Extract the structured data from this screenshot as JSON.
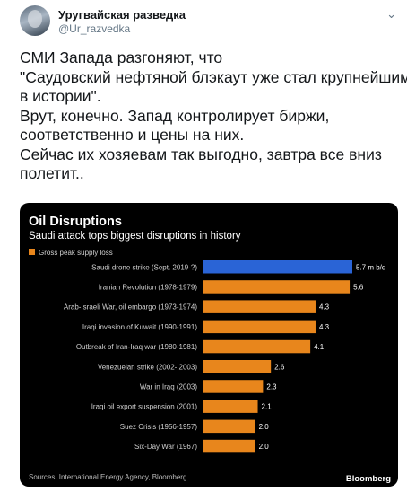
{
  "account": {
    "name": "Уругвайская разведка",
    "handle": "@Ur_razvedka",
    "avatar_icon": "profile-avatar",
    "menu_icon": "chevron-down-icon"
  },
  "tweet": {
    "lines": [
      "СМИ Запада разгоняют, что",
      "\"Саудовский нефтяной блэкаут уже стал крупнейшим",
      "в истории\".",
      "Врут, конечно. Запад контролирует биржи,",
      "соответственно и цены на них.",
      "Сейчас их хозяевам так выгодно, завтра все вниз",
      "полетит.."
    ]
  },
  "chart_data": {
    "type": "bar",
    "orientation": "horizontal",
    "title": "Oil Disruptions",
    "subtitle": "Saudi attack tops biggest disruptions in history",
    "legend": "Gross peak supply loss",
    "categories": [
      "Saudi drone strike (Sept. 2019-?)",
      "Iranian Revolution (1978-1979)",
      "Arab-Israeli War, oil embargo (1973-1974)",
      "Iraqi invasion of Kuwait (1990-1991)",
      "Outbreak of Iran-Iraq war (1980-1981)",
      "Venezuelan strike (2002- 2003)",
      "War in Iraq (2003)",
      "Iraqi oil export suspension (2001)",
      "Suez Crisis (1956-1957)",
      "Six-Day War (1967)"
    ],
    "values": [
      5.7,
      5.6,
      4.3,
      4.3,
      4.1,
      2.6,
      2.3,
      2.1,
      2.0,
      2.0
    ],
    "value_labels": [
      "5.7 m b/d",
      "5.6",
      "4.3",
      "4.3",
      "4.1",
      "2.6",
      "2.3",
      "2.1",
      "2.0",
      "2.0"
    ],
    "xlim": [
      0,
      5.7
    ],
    "colors": {
      "highlight": "#2a64d6",
      "default": "#e8861c",
      "background": "#000000",
      "text": "#ffffff",
      "label": "#d0d0d0"
    },
    "source": "Sources: International Energy Agency, Bloomberg",
    "brand": "Bloomberg"
  }
}
